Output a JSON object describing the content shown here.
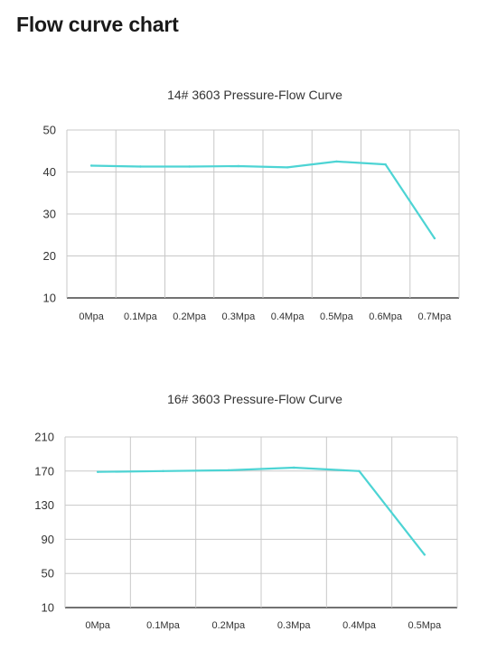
{
  "page": {
    "heading": "Flow curve chart"
  },
  "chart_data": [
    {
      "type": "line",
      "title": "14# 3603 Pressure-Flow Curve",
      "xlabel": "",
      "ylabel": "",
      "categories": [
        "0Mpa",
        "0.1Mpa",
        "0.2Mpa",
        "0.3Mpa",
        "0.4Mpa",
        "0.5Mpa",
        "0.6Mpa",
        "0.7Mpa"
      ],
      "y_ticks": [
        10,
        20,
        30,
        40,
        50
      ],
      "ylim": [
        10,
        50
      ],
      "grid": true,
      "series": [
        {
          "values": [
            41.5,
            41.3,
            41.3,
            41.4,
            41.1,
            42.5,
            41.8,
            24.2
          ]
        }
      ],
      "line_color": "#4dd4d4"
    },
    {
      "type": "line",
      "title": "16# 3603 Pressure-Flow Curve",
      "xlabel": "",
      "ylabel": "",
      "categories": [
        "0Mpa",
        "0.1Mpa",
        "0.2Mpa",
        "0.3Mpa",
        "0.4Mpa",
        "0.5Mpa"
      ],
      "y_ticks": [
        10,
        50,
        90,
        130,
        170,
        210
      ],
      "ylim": [
        10,
        210
      ],
      "grid": true,
      "series": [
        {
          "values": [
            169,
            170,
            171,
            174,
            170,
            72
          ]
        }
      ],
      "line_color": "#4dd4d4"
    }
  ]
}
